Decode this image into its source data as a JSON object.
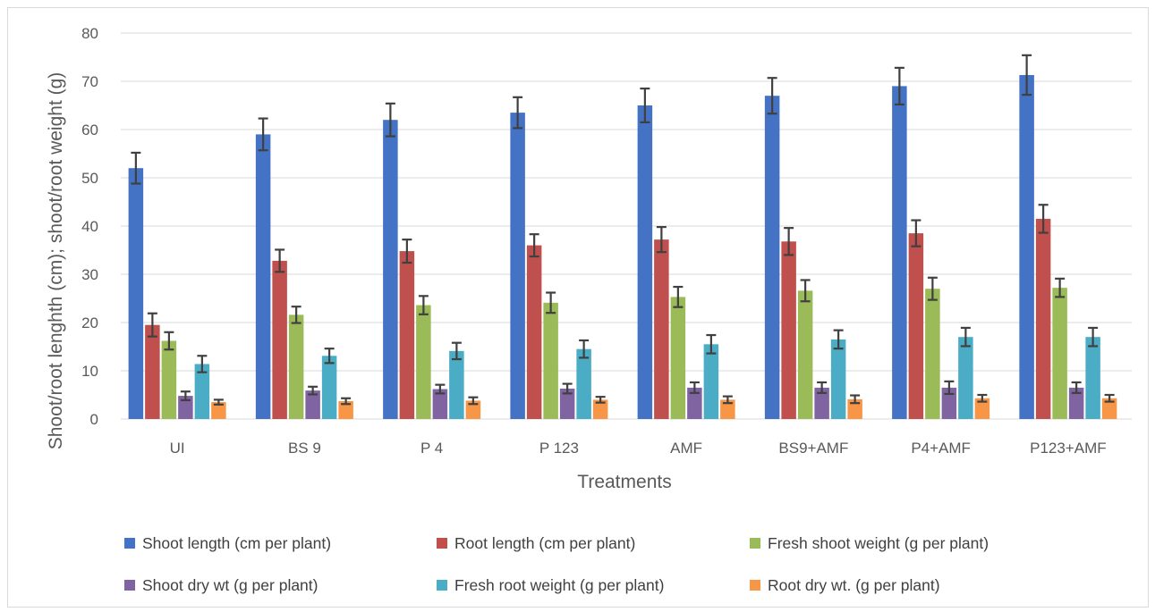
{
  "chart_data": {
    "type": "bar",
    "title": "",
    "xlabel": "Treatments",
    "ylabel": "Shoot/root lenghth (cm); shoot/root weight (g)",
    "ylim": [
      0,
      80
    ],
    "yticks": [
      0,
      10,
      20,
      30,
      40,
      50,
      60,
      70,
      80
    ],
    "grid": true,
    "legend_position": "bottom",
    "error_bars": true,
    "categories": [
      "UI",
      "BS 9",
      "P 4",
      "P 123",
      "AMF",
      "BS9+AMF",
      "P4+AMF",
      "P123+AMF"
    ],
    "series": [
      {
        "name": "Shoot length (cm per plant)",
        "color": "#4472C4",
        "values": [
          52,
          59,
          62,
          63.5,
          65,
          67,
          69,
          71.3
        ],
        "errors": [
          3.2,
          3.3,
          3.4,
          3.2,
          3.5,
          3.7,
          3.8,
          4.1
        ]
      },
      {
        "name": "Root length (cm per plant)",
        "color": "#C0504D",
        "values": [
          19.5,
          32.8,
          34.8,
          36,
          37.2,
          36.8,
          38.5,
          41.5
        ],
        "errors": [
          2.4,
          2.3,
          2.4,
          2.3,
          2.6,
          2.8,
          2.7,
          2.9
        ]
      },
      {
        "name": "Fresh shoot weight (g per plant)",
        "color": "#9BBB59",
        "values": [
          16.2,
          21.6,
          23.6,
          24.1,
          25.3,
          26.6,
          27,
          27.2
        ],
        "errors": [
          1.8,
          1.7,
          1.9,
          2.1,
          2.1,
          2.2,
          2.3,
          1.9
        ]
      },
      {
        "name": "Shoot dry wt (g per plant)",
        "color": "#8064A2",
        "values": [
          4.8,
          5.9,
          6.2,
          6.3,
          6.5,
          6.5,
          6.5,
          6.5
        ],
        "errors": [
          0.9,
          0.8,
          0.9,
          1,
          1.1,
          1.1,
          1.3,
          1.1
        ]
      },
      {
        "name": "Fresh root weight (g per plant)",
        "color": "#4BACC6",
        "values": [
          11.4,
          13.1,
          14.1,
          14.5,
          15.5,
          16.5,
          17,
          17
        ],
        "errors": [
          1.7,
          1.5,
          1.7,
          1.8,
          1.9,
          1.9,
          1.9,
          1.9
        ]
      },
      {
        "name": "Root dry wt. (g per plant)",
        "color": "#F79646",
        "values": [
          3.5,
          3.7,
          3.8,
          4,
          4,
          4.1,
          4.3,
          4.3
        ],
        "errors": [
          0.5,
          0.6,
          0.7,
          0.6,
          0.7,
          0.8,
          0.7,
          0.7
        ]
      }
    ]
  },
  "colors": {
    "gridline": "#d9d9d9",
    "error_bar": "#404040",
    "axis_text": "#595959"
  }
}
